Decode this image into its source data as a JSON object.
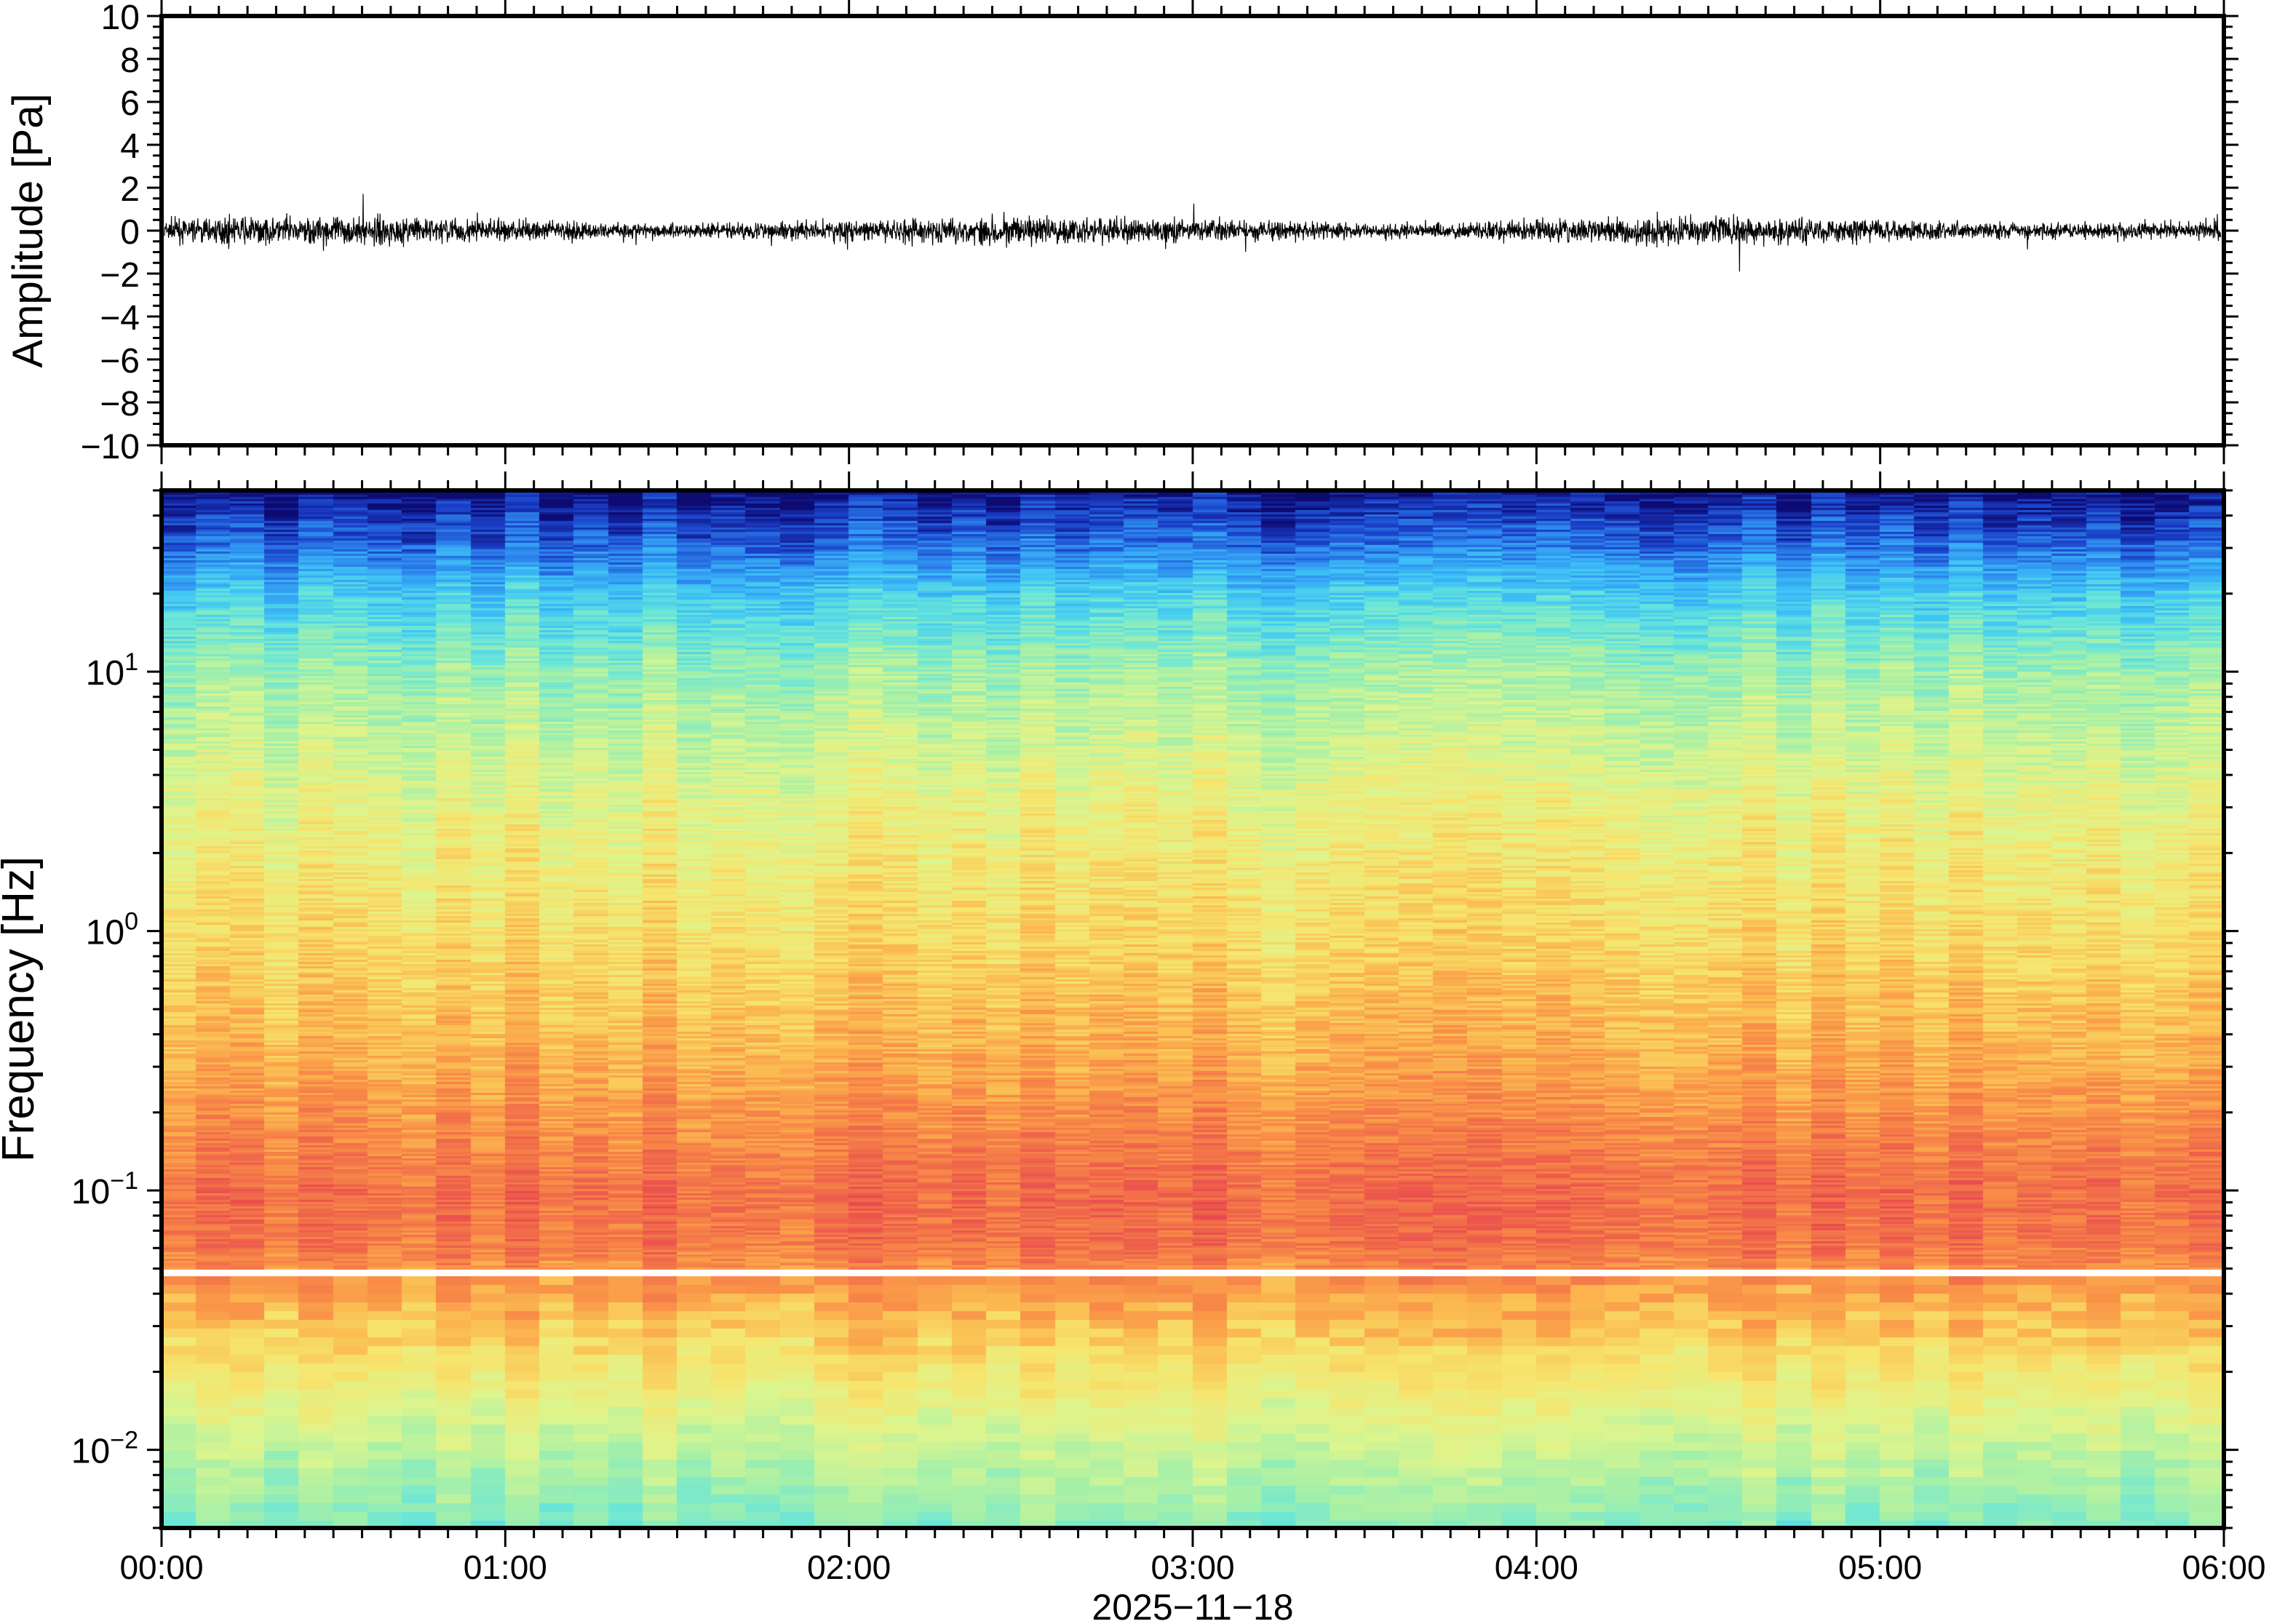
{
  "chart_data": [
    {
      "type": "line",
      "panel": "waveform",
      "ylabel": "Amplitude [Pa]",
      "ylim": [
        -10,
        10
      ],
      "yticks": [
        "10",
        "8",
        "6",
        "4",
        "2",
        "0",
        "−2",
        "−4",
        "−6",
        "−8",
        "−10"
      ],
      "ytick_values": [
        10,
        8,
        6,
        4,
        2,
        0,
        -2,
        -4,
        -6,
        -8,
        -10
      ],
      "xlim_hours": [
        0,
        6
      ],
      "description_values": {
        "typical_abs_amplitude": 0.6,
        "max_abs_amplitude": 1.9
      },
      "line_color": "#000000"
    },
    {
      "type": "heatmap",
      "panel": "spectrogram",
      "ylabel": "Frequency [Hz]",
      "yscale": "log",
      "ylim": [
        0.005,
        50
      ],
      "yticks": [
        {
          "base": "10",
          "exp": "1",
          "value": 10
        },
        {
          "base": "10",
          "exp": "0",
          "value": 1
        },
        {
          "base": "10",
          "exp": "−1",
          "value": 0.1
        },
        {
          "base": "10",
          "exp": "−2",
          "value": 0.01
        }
      ],
      "xlabel": "2025−11−18",
      "xticks": [
        "00:00",
        "01:00",
        "02:00",
        "03:00",
        "04:00",
        "05:00",
        "06:00"
      ],
      "xlim_hours": [
        0,
        6
      ],
      "time_bins": 60,
      "relative_power_profile": {
        "log10_freq": [
          -2.3,
          -2.0,
          -1.6,
          -1.2,
          -1.0,
          -0.5,
          0.0,
          0.5,
          1.0,
          1.3,
          1.5,
          1.7
        ],
        "level": [
          0.4,
          0.5,
          0.66,
          0.88,
          0.9,
          0.76,
          0.66,
          0.58,
          0.45,
          0.3,
          0.14,
          0.02
        ]
      },
      "colormap": [
        "#0d0a72",
        "#1a3fc8",
        "#2f8ef0",
        "#3ec4f6",
        "#6ae6d8",
        "#a6f0a8",
        "#dcf58e",
        "#f6e56e",
        "#fbbd52",
        "#f98f47",
        "#f06a4a",
        "#e8434f"
      ]
    }
  ]
}
